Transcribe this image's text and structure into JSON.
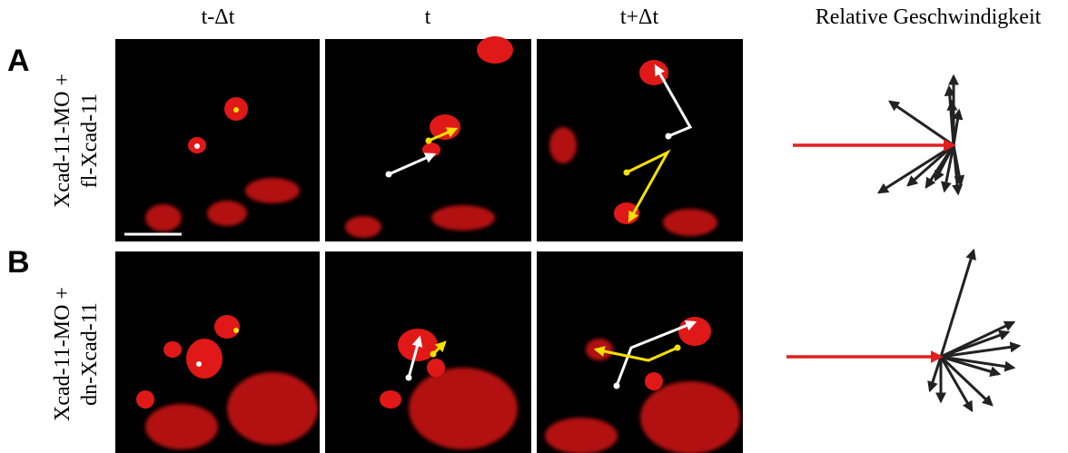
{
  "header": {
    "columns": [
      "t-Δt",
      "t",
      "t+Δt"
    ],
    "velocity_title": "Relative Geschwindigkeit"
  },
  "panels": [
    {
      "label": "A",
      "row_label": [
        "Xcad-11-MO +",
        "fl-Xcad-11"
      ]
    },
    {
      "label": "B",
      "row_label": [
        "Xcad-11-MO +",
        "dn-Xcad-11"
      ]
    }
  ]
}
